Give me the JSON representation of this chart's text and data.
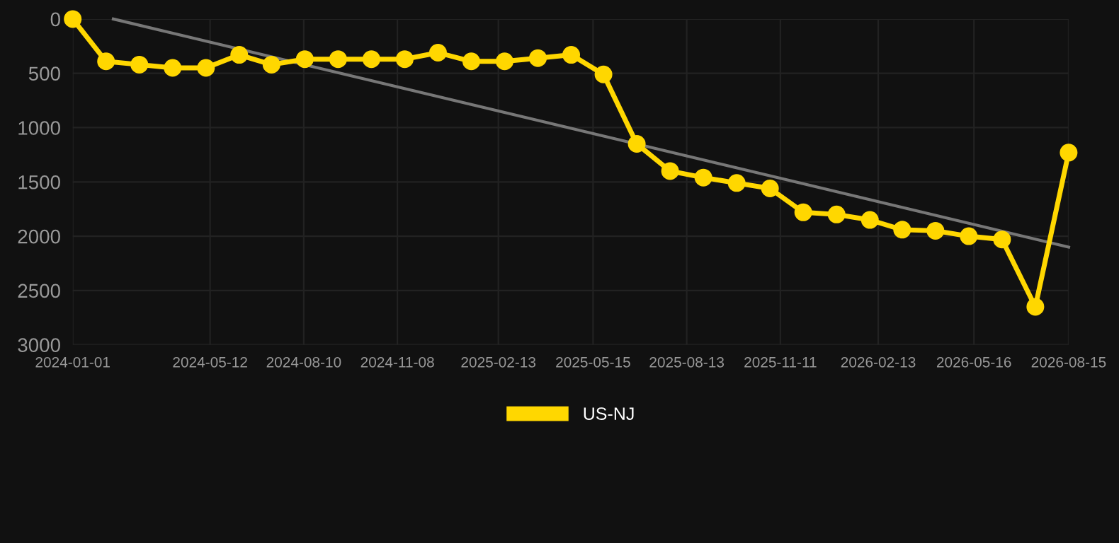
{
  "chart_data": {
    "type": "line",
    "x": [
      "2024-01-01",
      "2024-02-02",
      "2024-03-05",
      "2024-04-06",
      "2024-05-08",
      "2024-06-09",
      "2024-07-10",
      "2024-08-11",
      "2024-09-12",
      "2024-10-14",
      "2024-11-15",
      "2024-12-17",
      "2025-01-18",
      "2025-02-19",
      "2025-03-23",
      "2025-04-24",
      "2025-05-25",
      "2025-06-26",
      "2025-07-28",
      "2025-08-29",
      "2025-09-30",
      "2025-11-01",
      "2025-12-03",
      "2026-01-04",
      "2026-02-05",
      "2026-03-08",
      "2026-04-09",
      "2026-05-11",
      "2026-06-12",
      "2026-07-14",
      "2026-08-15"
    ],
    "series": [
      {
        "name": "US-NJ",
        "color": "#ffd700",
        "marker": "circle",
        "values": [
          0,
          390,
          420,
          450,
          450,
          330,
          420,
          370,
          370,
          370,
          370,
          310,
          390,
          390,
          360,
          330,
          510,
          1150,
          1400,
          1460,
          1510,
          1560,
          1780,
          1800,
          1850,
          1940,
          1950,
          2000,
          2030,
          2650,
          1230
        ]
      },
      {
        "type": "line",
        "color": "#777777",
        "marker": "none",
        "x": [
          "2024-02-09",
          "2026-08-15"
        ],
        "values": [
          0,
          2100
        ]
      }
    ],
    "ylim": [
      3000,
      0
    ],
    "yticks": [
      0,
      500,
      1000,
      1500,
      2000,
      2500,
      3000
    ],
    "xlim": [
      "2024-01-01",
      "2026-08-15"
    ],
    "xticks": [
      "2024-01-01",
      "2024-05-12",
      "2024-08-10",
      "2024-11-08",
      "2025-02-13",
      "2025-05-15",
      "2025-08-13",
      "2025-11-11",
      "2026-02-13",
      "2026-05-16",
      "2026-08-15"
    ],
    "grid": true,
    "legend": "bottom",
    "line_style": "solid"
  }
}
